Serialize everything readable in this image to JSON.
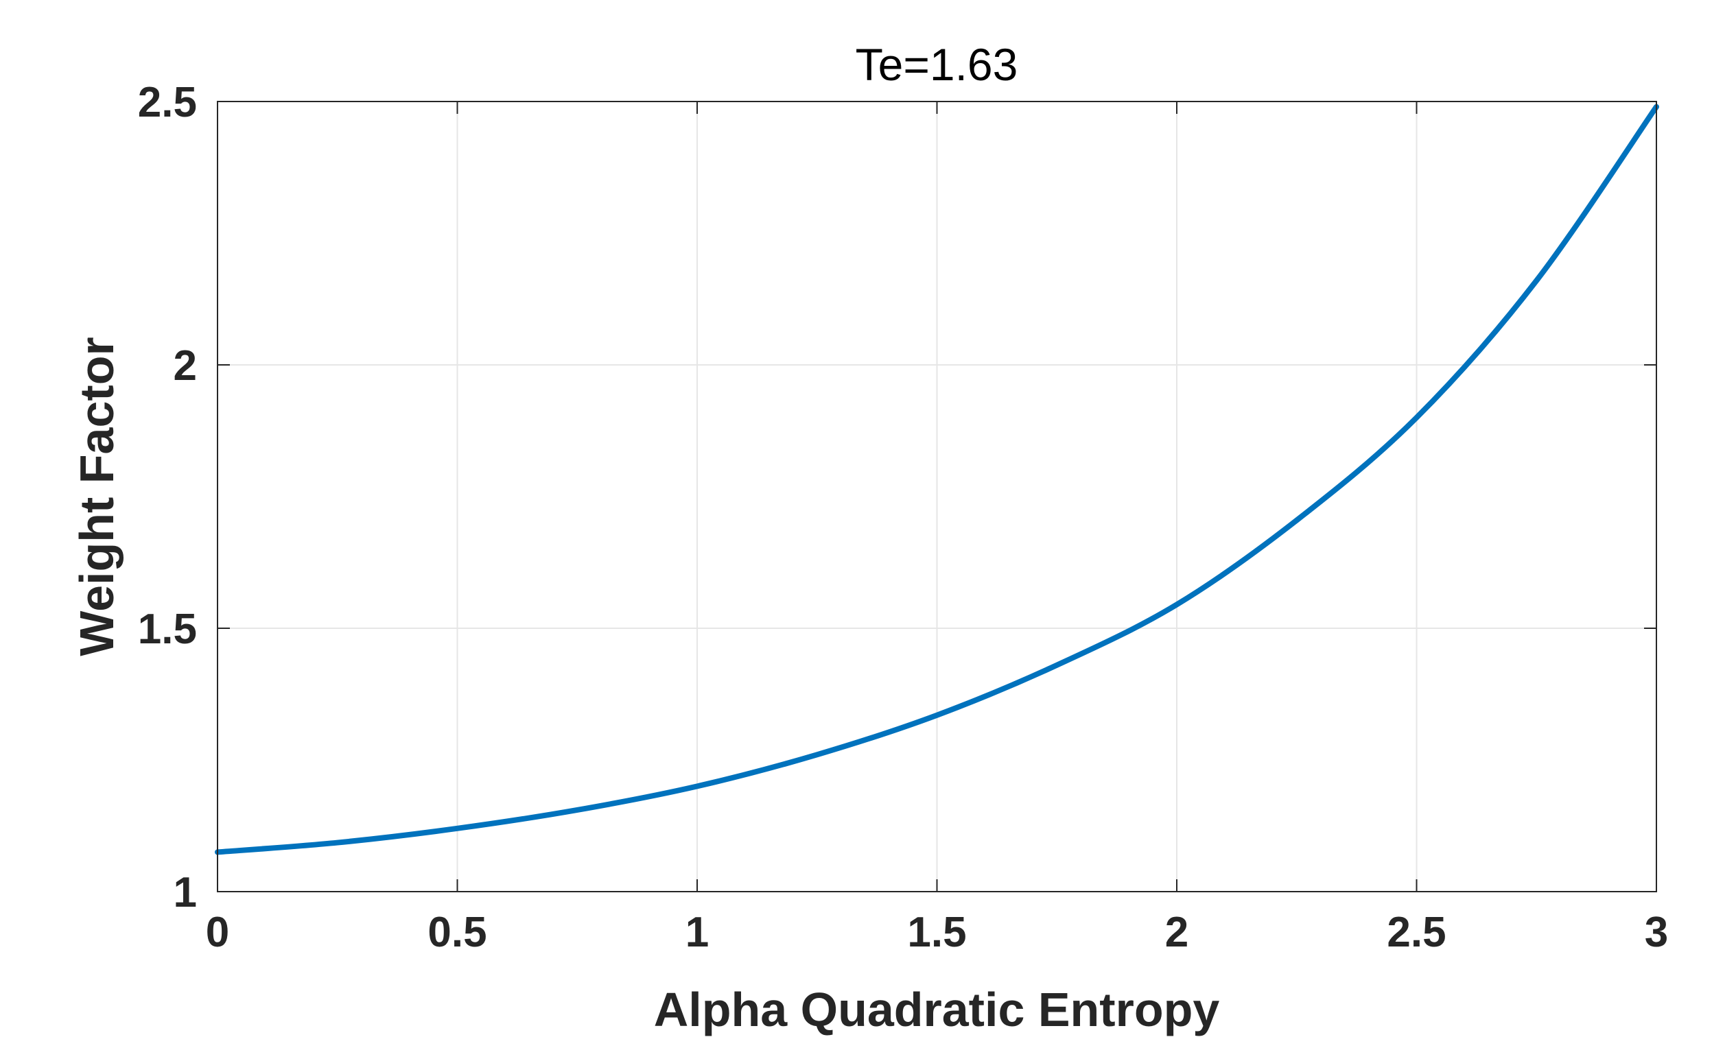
{
  "chart_data": {
    "type": "line",
    "title": "Te=1.63",
    "xlabel": "Alpha Quadratic Entropy",
    "ylabel": "Weight Factor",
    "xlim": [
      0,
      3
    ],
    "ylim": [
      1,
      2.5
    ],
    "xticks": [
      0,
      0.5,
      1,
      1.5,
      2,
      2.5,
      3
    ],
    "xtick_labels": [
      "0",
      "0.5",
      "1",
      "1.5",
      "2",
      "2.5",
      "3"
    ],
    "yticks": [
      1,
      1.5,
      2,
      2.5
    ],
    "ytick_labels": [
      "1",
      "1.5",
      "2",
      "2.5"
    ],
    "grid": true,
    "series": [
      {
        "name": "Weight Factor",
        "color": "#0072BD",
        "x": [
          0,
          0.25,
          0.5,
          0.75,
          1,
          1.25,
          1.5,
          1.75,
          2,
          2.25,
          2.5,
          2.75,
          3
        ],
        "y": [
          1.075,
          1.093,
          1.12,
          1.155,
          1.2,
          1.26,
          1.335,
          1.43,
          1.545,
          1.705,
          1.9,
          2.16,
          2.49
        ]
      }
    ],
    "colors": {
      "line": "#0072BD",
      "grid": "#e6e6e6",
      "axis": "#262626"
    }
  }
}
